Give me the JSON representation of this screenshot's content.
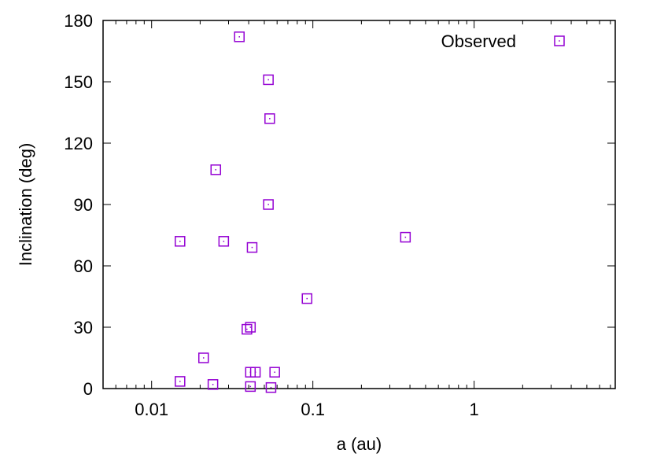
{
  "chart_data": {
    "type": "scatter",
    "xlabel": "a (au)",
    "ylabel": "Inclination (deg)",
    "x_scale": "log",
    "xlim": [
      0.005,
      7.5
    ],
    "ylim": [
      0,
      180
    ],
    "x_ticks": [
      0.01,
      0.1,
      1
    ],
    "x_tick_labels": [
      "0.01",
      "0.1",
      "1"
    ],
    "y_ticks": [
      0,
      30,
      60,
      90,
      120,
      150,
      180
    ],
    "y_tick_labels": [
      "0",
      "30",
      "60",
      "90",
      "120",
      "150",
      "180"
    ],
    "grid": false,
    "legend_position": "top-right",
    "series": [
      {
        "name": "Observed",
        "color": "#9400d3",
        "marker": "open-square",
        "points": [
          {
            "x": 0.035,
            "y": 172
          },
          {
            "x": 0.053,
            "y": 151
          },
          {
            "x": 0.054,
            "y": 132
          },
          {
            "x": 0.025,
            "y": 107
          },
          {
            "x": 0.053,
            "y": 90
          },
          {
            "x": 0.015,
            "y": 72
          },
          {
            "x": 0.028,
            "y": 72
          },
          {
            "x": 0.042,
            "y": 69
          },
          {
            "x": 0.375,
            "y": 74
          },
          {
            "x": 0.092,
            "y": 44
          },
          {
            "x": 0.039,
            "y": 29
          },
          {
            "x": 0.041,
            "y": 30
          },
          {
            "x": 0.021,
            "y": 15
          },
          {
            "x": 0.015,
            "y": 3.5
          },
          {
            "x": 0.024,
            "y": 2
          },
          {
            "x": 0.041,
            "y": 8
          },
          {
            "x": 0.044,
            "y": 8
          },
          {
            "x": 0.058,
            "y": 8
          },
          {
            "x": 0.041,
            "y": 1
          },
          {
            "x": 0.055,
            "y": 0.5
          }
        ]
      }
    ]
  }
}
